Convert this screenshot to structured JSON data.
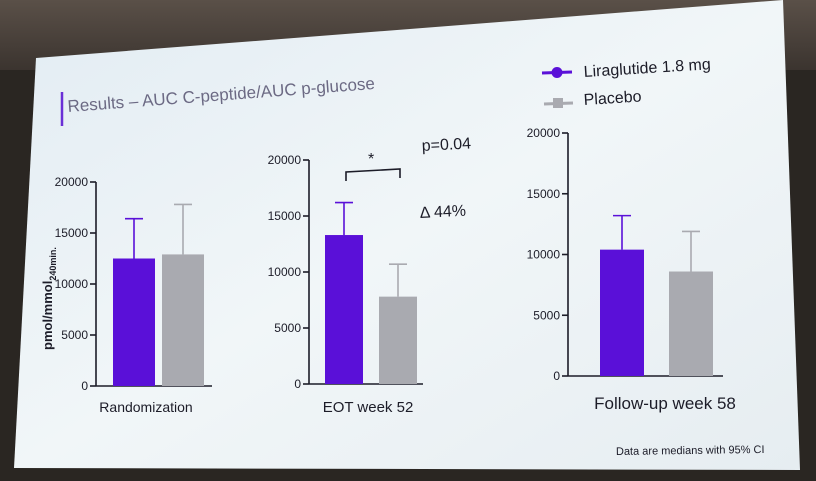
{
  "slide": {
    "title": "Results – AUC C-peptide/AUC p-glucose",
    "footnote": "Data are medians with 95% CI"
  },
  "legend": [
    {
      "label": "Liraglutide 1.8 mg",
      "color": "#5a10d8",
      "marker": "circle"
    },
    {
      "label": "Placebo",
      "color": "#a9aab0",
      "marker": "square"
    }
  ],
  "chart_data": [
    {
      "type": "bar",
      "xlabel": "Randomization",
      "ylabel": "pmol/mmol240min.",
      "ylabel_main": "pmol/mmol",
      "ylabel_sub": "240min.",
      "ylim": [
        0,
        20000
      ],
      "yticks": [
        0,
        5000,
        10000,
        15000,
        20000
      ],
      "series": [
        {
          "name": "Liraglutide 1.8 mg",
          "value": 12500,
          "ci_upper": 16400,
          "color": "#5a10d8"
        },
        {
          "name": "Placebo",
          "value": 12900,
          "ci_upper": 17800,
          "color": "#a9aab0"
        }
      ]
    },
    {
      "type": "bar",
      "xlabel": "EOT week 52",
      "ylim": [
        0,
        20000
      ],
      "yticks": [
        0,
        5000,
        10000,
        15000,
        20000
      ],
      "series": [
        {
          "name": "Liraglutide 1.8 mg",
          "value": 13300,
          "ci_upper": 16200,
          "color": "#5a10d8"
        },
        {
          "name": "Placebo",
          "value": 7800,
          "ci_upper": 10700,
          "color": "#a9aab0"
        }
      ],
      "annotations": {
        "significance": "*",
        "p_value": "p=0.04",
        "delta": "Δ 44%"
      }
    },
    {
      "type": "bar",
      "xlabel": "Follow-up week 58",
      "ylim": [
        0,
        20000
      ],
      "yticks": [
        0,
        5000,
        10000,
        15000,
        20000
      ],
      "series": [
        {
          "name": "Liraglutide 1.8 mg",
          "value": 10400,
          "ci_upper": 13200,
          "color": "#5a10d8"
        },
        {
          "name": "Placebo",
          "value": 8600,
          "ci_upper": 11900,
          "color": "#a9aab0"
        }
      ]
    }
  ]
}
